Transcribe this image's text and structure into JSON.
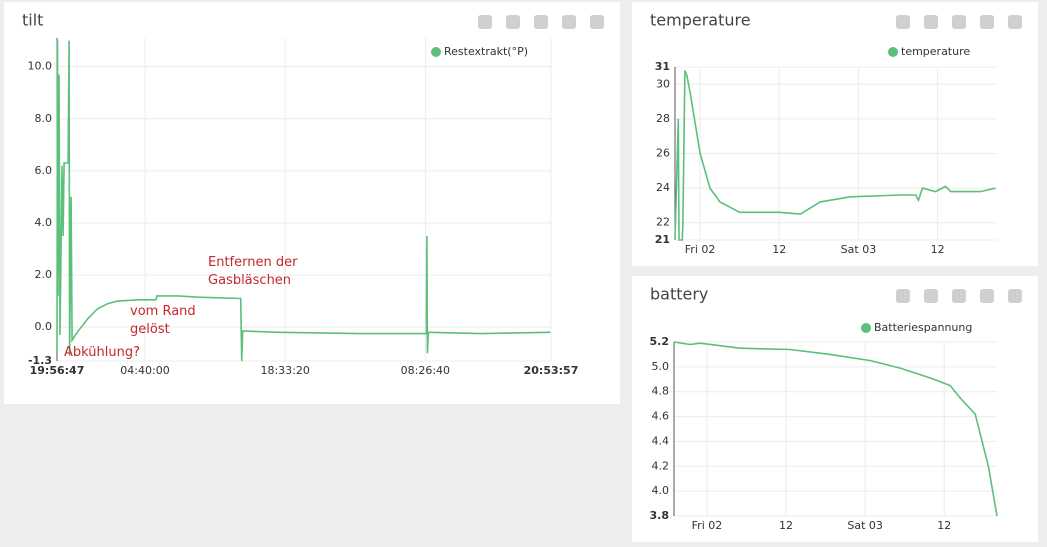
{
  "chart_data": [
    {
      "type": "line",
      "title": "tilt",
      "x": [
        0,
        0.05,
        0.1,
        0.2,
        0.3,
        0.5,
        0.6,
        0.7,
        1.1,
        1.2,
        1.25,
        1.4,
        1.5,
        2.0,
        3,
        4,
        5,
        6,
        8,
        9.8,
        9.9,
        12,
        14,
        18.2,
        18.3,
        18.4,
        22,
        30,
        36.6,
        36.65,
        36.7,
        36.8,
        42,
        48.9
      ],
      "series": [
        {
          "name": "Restextrakt(°P)",
          "color": "#5cbf7b",
          "values": [
            -1.0,
            11,
            1.2,
            9.7,
            -0.3,
            6.2,
            3.5,
            6.3,
            6.3,
            11,
            -1.1,
            5.0,
            -0.5,
            -0.2,
            0.3,
            0.7,
            0.9,
            1.0,
            1.05,
            1.05,
            1.2,
            1.2,
            1.15,
            1.1,
            -1.3,
            -0.15,
            -0.2,
            -0.25,
            -0.25,
            3.5,
            -1.0,
            -0.2,
            -0.25,
            -0.2
          ]
        }
      ],
      "xlim": [
        0,
        48.95
      ],
      "xticks": [
        {
          "value": 0,
          "label": "19:56:47"
        },
        {
          "value": 8.72,
          "label": "04:40:00"
        },
        {
          "value": 22.61,
          "label": "18:33:20"
        },
        {
          "value": 36.5,
          "label": "08:26:40"
        },
        {
          "value": 48.95,
          "label": "20:53:57"
        }
      ],
      "ylim": [
        -1.3,
        11.1
      ],
      "yticks": [
        -1.3,
        {
          "value": 0,
          "label": "0.0"
        },
        {
          "value": 2,
          "label": "2.0"
        },
        {
          "value": 4,
          "label": "4.0"
        },
        {
          "value": 6,
          "label": "6.0"
        },
        {
          "value": 8,
          "label": "8.0"
        },
        {
          "value": 10,
          "label": "10.0"
        }
      ],
      "grid": true,
      "annotations": [
        "Abkühlung?",
        "vom Rand gelöst",
        "Entfernen der Gasbläschen"
      ]
    },
    {
      "type": "line",
      "title": "temperature",
      "x": [
        -3.8,
        -3.3,
        -3.2,
        -2.7,
        -2.6,
        -2.3,
        -2.0,
        -1.5,
        0,
        1.5,
        3,
        6,
        12,
        15.2,
        18.2,
        22.8,
        30.4,
        32.7,
        33.1,
        33.7,
        35.7,
        37.2,
        38,
        42.5,
        44.8
      ],
      "series": [
        {
          "name": "temperature",
          "color": "#5cbf7b",
          "values": [
            21,
            28,
            21,
            21,
            22,
            30.8,
            30.5,
            29.5,
            26,
            24,
            23.2,
            22.6,
            22.6,
            22.5,
            23.2,
            23.5,
            23.6,
            23.6,
            23.3,
            24.0,
            23.8,
            24.1,
            23.8,
            23.8,
            24.0
          ]
        }
      ],
      "xlim": [
        -3.8,
        45
      ],
      "xticks": [
        {
          "value": 0,
          "label": "Fri 02"
        },
        12,
        {
          "value": 24,
          "label": "Sat 03"
        },
        {
          "value": 36,
          "label": "12"
        }
      ],
      "ylim": [
        21,
        31
      ],
      "yticks": [
        21,
        22,
        24,
        26,
        28,
        30,
        31
      ],
      "grid": true
    },
    {
      "type": "line",
      "title": "battery",
      "x": [
        -5,
        -2.6,
        -1,
        5,
        12.6,
        18.7,
        24.8,
        29.3,
        33.9,
        36.9,
        38.4,
        40.7,
        42.7,
        44
      ],
      "series": [
        {
          "name": "Batteriespannung",
          "color": "#5cbf7b",
          "values": [
            5.2,
            5.18,
            5.19,
            5.15,
            5.14,
            5.1,
            5.05,
            4.99,
            4.91,
            4.85,
            4.75,
            4.62,
            4.2,
            3.8
          ]
        }
      ],
      "xlim": [
        -5,
        44
      ],
      "xticks": [
        {
          "value": 0,
          "label": "Fri 02"
        },
        12,
        {
          "value": 24,
          "label": "Sat 03"
        },
        {
          "value": 36,
          "label": "12"
        }
      ],
      "ylim": [
        3.8,
        5.2
      ],
      "yticks": [
        3.8,
        {
          "value": 4,
          "label": "4.0"
        },
        4.2,
        4.4,
        4.6,
        4.8,
        {
          "value": 5,
          "label": "5.0"
        },
        5.2
      ],
      "grid": true
    }
  ]
}
